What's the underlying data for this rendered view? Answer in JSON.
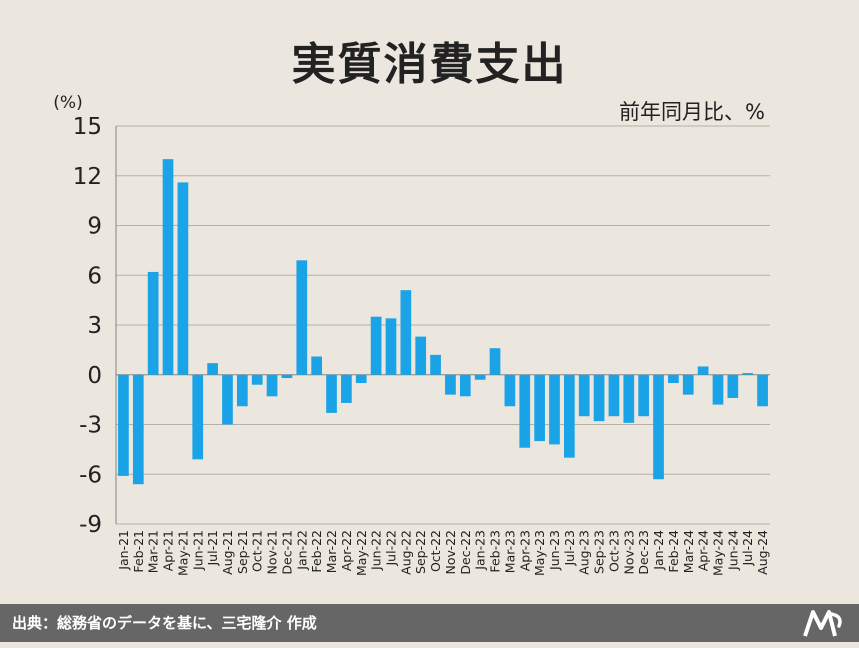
{
  "chart_data": {
    "type": "bar",
    "title": "実質消費支出",
    "subtitle": "前年同月比、%",
    "ylabel": "(%)",
    "ylim": [
      -9,
      15
    ],
    "yticks": [
      15,
      12,
      9,
      6,
      3,
      0,
      -3,
      -6,
      -9
    ],
    "grid": true,
    "categories": [
      "Jan-21",
      "Feb-21",
      "Mar-21",
      "Apr-21",
      "May-21",
      "Jun-21",
      "Jul-21",
      "Aug-21",
      "Sep-21",
      "Oct-21",
      "Nov-21",
      "Dec-21",
      "Jan-22",
      "Feb-22",
      "Mar-22",
      "Apr-22",
      "May-22",
      "Jun-22",
      "Jul-22",
      "Aug-22",
      "Sep-22",
      "Oct-22",
      "Nov-22",
      "Dec-22",
      "Jan-23",
      "Feb-23",
      "Mar-23",
      "Apr-23",
      "May-23",
      "Jun-23",
      "Jul-23",
      "Aug-23",
      "Sep-23",
      "Oct-23",
      "Nov-23",
      "Dec-23",
      "Jan-24",
      "Feb-24",
      "Mar-24",
      "Apr-24",
      "May-24",
      "Jun-24",
      "Jul-24",
      "Aug-24"
    ],
    "series": [
      {
        "values": [
          -6.1,
          -6.6,
          6.2,
          13.0,
          11.6,
          -5.1,
          0.7,
          -3.0,
          -1.9,
          -0.6,
          -1.3,
          -0.2,
          6.9,
          1.1,
          -2.3,
          -1.7,
          -0.5,
          3.5,
          3.4,
          5.1,
          2.3,
          1.2,
          -1.2,
          -1.3,
          -0.3,
          1.6,
          -1.9,
          -4.4,
          -4.0,
          -4.2,
          -5.0,
          -2.5,
          -2.8,
          -2.5,
          -2.9,
          -2.5,
          -6.3,
          -0.5,
          -1.2,
          0.5,
          -1.8,
          -1.4,
          0.1,
          -1.9
        ]
      }
    ],
    "bar_color": "#1aa3e6",
    "grid_color": "#b5b0a8"
  },
  "footer": {
    "source": "出典：総務省のデータを基に、三宅隆介 作成"
  },
  "colors": {
    "background": "#ebe6de",
    "footer_bg": "#666666"
  }
}
